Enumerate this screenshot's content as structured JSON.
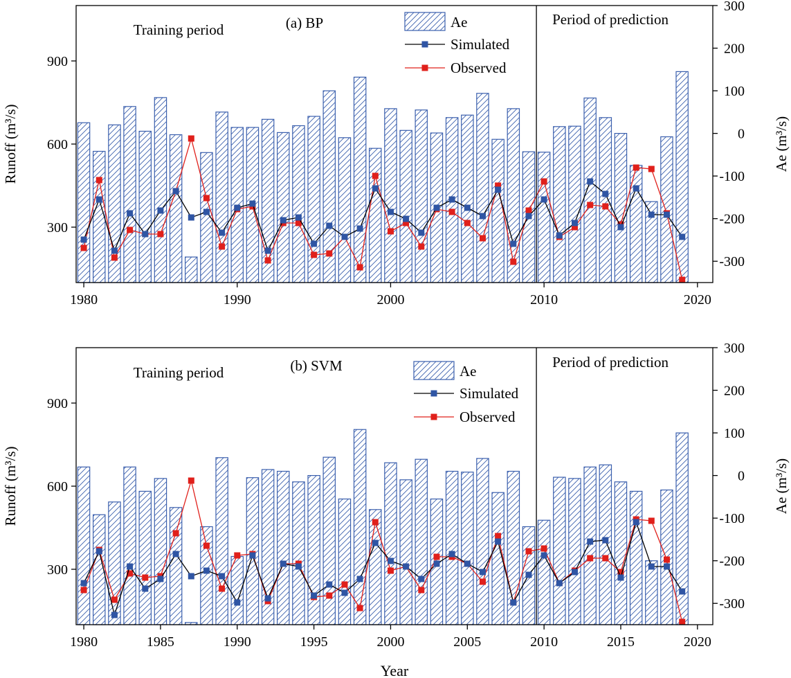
{
  "figure": {
    "shared_xlabel": "Year",
    "colors": {
      "ae_stroke": "#3a5fad",
      "simulated_line": "#000000",
      "simulated_marker": "#2f55a4",
      "observed": "#e0201b",
      "axis": "#000000"
    }
  },
  "chart_data": [
    {
      "type": "bar+line",
      "title": "(a) BP",
      "annotations": [
        "Training period",
        "Period of prediction"
      ],
      "split_year": 2009.5,
      "xlabel": "",
      "ylabel_left": "Runoff (m³/s)",
      "ylabel_right": "Ae (m³/s)",
      "xlim": [
        1979.5,
        2021
      ],
      "xticks": [
        1980,
        1990,
        2000,
        2010,
        2020
      ],
      "ylim_left": [
        100,
        1100
      ],
      "yticks_left": [
        300,
        600,
        900
      ],
      "ylim_right": [
        -350,
        300
      ],
      "yticks_right": [
        -300,
        -200,
        -100,
        0,
        100,
        200,
        300
      ],
      "grid": false,
      "legend": [
        "Ae",
        "Simulated",
        "Observed"
      ],
      "legend_position": "top-center",
      "x": [
        1980,
        1981,
        1982,
        1983,
        1984,
        1985,
        1986,
        1987,
        1988,
        1989,
        1990,
        1991,
        1992,
        1993,
        1994,
        1995,
        1996,
        1997,
        1998,
        1999,
        2000,
        2001,
        2002,
        2003,
        2004,
        2005,
        2006,
        2007,
        2008,
        2009,
        2010,
        2011,
        2012,
        2013,
        2014,
        2015,
        2016,
        2017,
        2018,
        2019
      ],
      "series": [
        {
          "name": "Ae",
          "kind": "bar",
          "axis": "right",
          "values": [
            25,
            -42,
            20,
            63,
            5,
            84,
            -3,
            -290,
            -45,
            50,
            14,
            14,
            33,
            2,
            18,
            40,
            100,
            -10,
            132,
            -35,
            58,
            7,
            55,
            1,
            37,
            43,
            94,
            -14,
            58,
            -43,
            -44,
            16,
            17,
            83,
            37,
            0,
            -75,
            -160,
            -8,
            145
          ]
        },
        {
          "name": "Simulated",
          "kind": "line",
          "axis": "left",
          "values": [
            255,
            400,
            215,
            350,
            275,
            360,
            430,
            335,
            355,
            280,
            370,
            385,
            215,
            325,
            335,
            240,
            305,
            265,
            295,
            440,
            355,
            330,
            280,
            370,
            400,
            370,
            340,
            435,
            240,
            340,
            400,
            270,
            315,
            465,
            420,
            300,
            440,
            345,
            345,
            265
          ]
        },
        {
          "name": "Observed",
          "kind": "line",
          "axis": "left",
          "values": [
            225,
            470,
            190,
            290,
            275,
            275,
            430,
            620,
            405,
            230,
            365,
            375,
            180,
            315,
            315,
            200,
            205,
            265,
            155,
            485,
            285,
            315,
            230,
            365,
            355,
            315,
            260,
            450,
            175,
            360,
            465,
            265,
            300,
            380,
            375,
            310,
            515,
            510,
            350,
            110
          ]
        }
      ]
    },
    {
      "type": "bar+line",
      "title": "(b) SVM",
      "annotations": [
        "Training period",
        "Period of prediction"
      ],
      "split_year": 2009.5,
      "xlabel": "Year",
      "ylabel_left": "Runoff (m³/s)",
      "ylabel_right": "Ae (m³/s)",
      "xlim": [
        1979.5,
        2021
      ],
      "xticks": [
        1980,
        1985,
        1990,
        1995,
        2000,
        2005,
        2010,
        2015,
        2020
      ],
      "ylim_left": [
        100,
        1100
      ],
      "yticks_left": [
        300,
        600,
        900
      ],
      "ylim_right": [
        -350,
        300
      ],
      "yticks_right": [
        -300,
        -200,
        -100,
        0,
        100,
        200,
        300
      ],
      "grid": false,
      "legend": [
        "Ae",
        "Simulated",
        "Observed"
      ],
      "legend_position": "top-center",
      "x": [
        1980,
        1981,
        1982,
        1983,
        1984,
        1985,
        1986,
        1987,
        1988,
        1989,
        1990,
        1991,
        1992,
        1993,
        1994,
        1995,
        1996,
        1997,
        1998,
        1999,
        2000,
        2001,
        2002,
        2003,
        2004,
        2005,
        2006,
        2007,
        2008,
        2009,
        2010,
        2011,
        2012,
        2013,
        2014,
        2015,
        2016,
        2017,
        2018,
        2019
      ],
      "series": [
        {
          "name": "Ae",
          "kind": "bar",
          "axis": "right",
          "values": [
            20,
            -92,
            -62,
            20,
            -37,
            -7,
            -75,
            -345,
            -120,
            42,
            -190,
            -5,
            14,
            10,
            -15,
            0,
            43,
            -55,
            108,
            -80,
            30,
            -10,
            38,
            -55,
            10,
            8,
            40,
            -40,
            10,
            -120,
            -105,
            -4,
            -7,
            20,
            25,
            -15,
            -37,
            -200,
            -34,
            100
          ]
        },
        {
          "name": "Simulated",
          "kind": "line",
          "axis": "left",
          "values": [
            250,
            365,
            135,
            310,
            230,
            265,
            355,
            275,
            295,
            275,
            180,
            350,
            195,
            320,
            310,
            205,
            245,
            215,
            265,
            395,
            330,
            310,
            265,
            320,
            355,
            320,
            290,
            400,
            180,
            280,
            350,
            250,
            290,
            400,
            405,
            270,
            470,
            310,
            310,
            220
          ]
        },
        {
          "name": "Observed",
          "kind": "line",
          "axis": "left",
          "values": [
            225,
            370,
            190,
            285,
            270,
            275,
            430,
            620,
            385,
            230,
            350,
            355,
            185,
            320,
            320,
            200,
            205,
            245,
            160,
            470,
            295,
            310,
            225,
            345,
            345,
            320,
            255,
            420,
            180,
            365,
            375,
            250,
            295,
            340,
            340,
            290,
            480,
            475,
            335,
            110
          ]
        }
      ]
    }
  ]
}
